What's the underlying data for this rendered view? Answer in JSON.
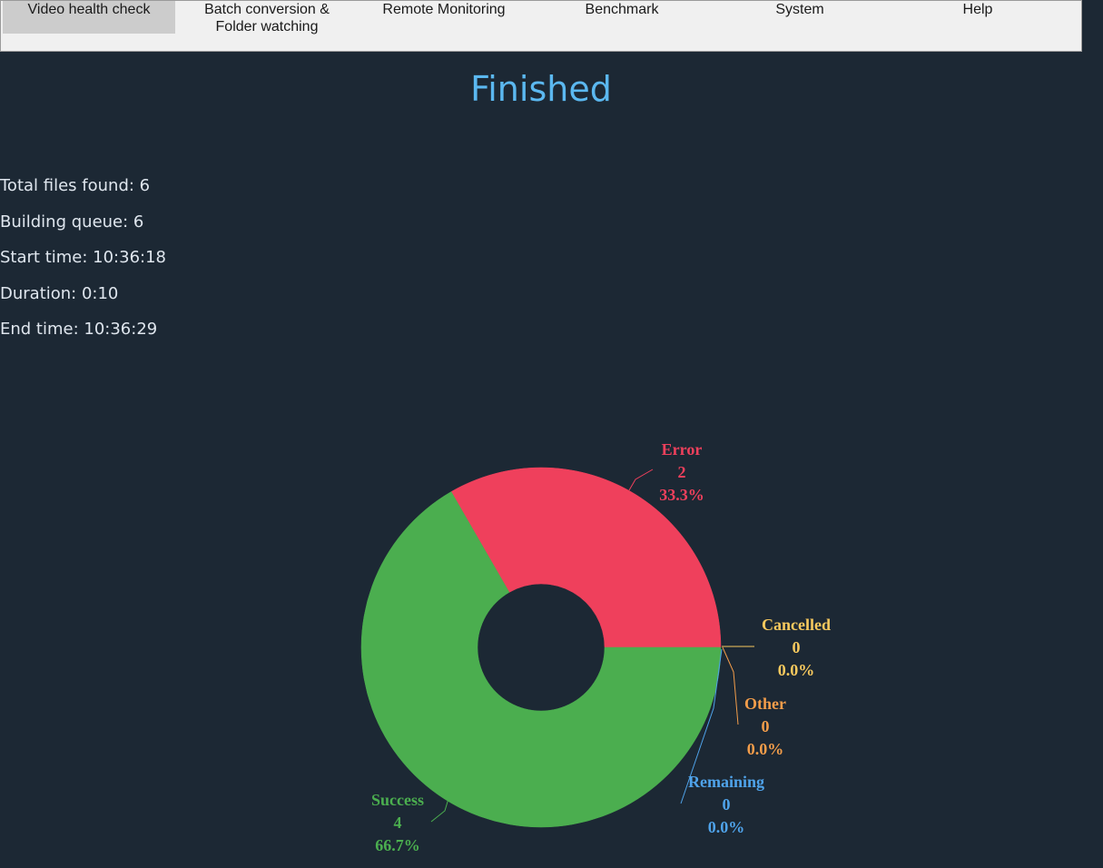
{
  "nav": {
    "tabs": [
      {
        "label_line1": "Video health check",
        "label_line2": ""
      },
      {
        "label_line1": "Batch conversion &",
        "label_line2": "Folder watching"
      },
      {
        "label_line1": "Remote Monitoring",
        "label_line2": ""
      },
      {
        "label_line1": "Benchmark",
        "label_line2": ""
      },
      {
        "label_line1": "System",
        "label_line2": ""
      },
      {
        "label_line1": "Help",
        "label_line2": ""
      }
    ]
  },
  "status_title": "Finished",
  "stats": {
    "total_files": "Total files found: 6",
    "building_queue": "Building queue: 6",
    "start_time": "Start time: 10:36:18",
    "duration": "Duration: 0:10",
    "end_time": "End time: 10:36:29"
  },
  "chart_data": {
    "type": "pie",
    "donut": true,
    "slices": [
      {
        "name": "Error",
        "value": 2,
        "value_label": "2",
        "percent_label": "33.3%",
        "color": "#ef405c"
      },
      {
        "name": "Cancelled",
        "value": 0,
        "value_label": "0",
        "percent_label": "0.0%",
        "color": "#f7c95e"
      },
      {
        "name": "Other",
        "value": 0,
        "value_label": "0",
        "percent_label": "0.0%",
        "color": "#f39d4a"
      },
      {
        "name": "Remaining",
        "value": 0,
        "value_label": "0",
        "percent_label": "0.0%",
        "color": "#4fa3ea"
      },
      {
        "name": "Success",
        "value": 4,
        "value_label": "4",
        "percent_label": "66.7%",
        "color": "#4bae4f"
      }
    ]
  }
}
